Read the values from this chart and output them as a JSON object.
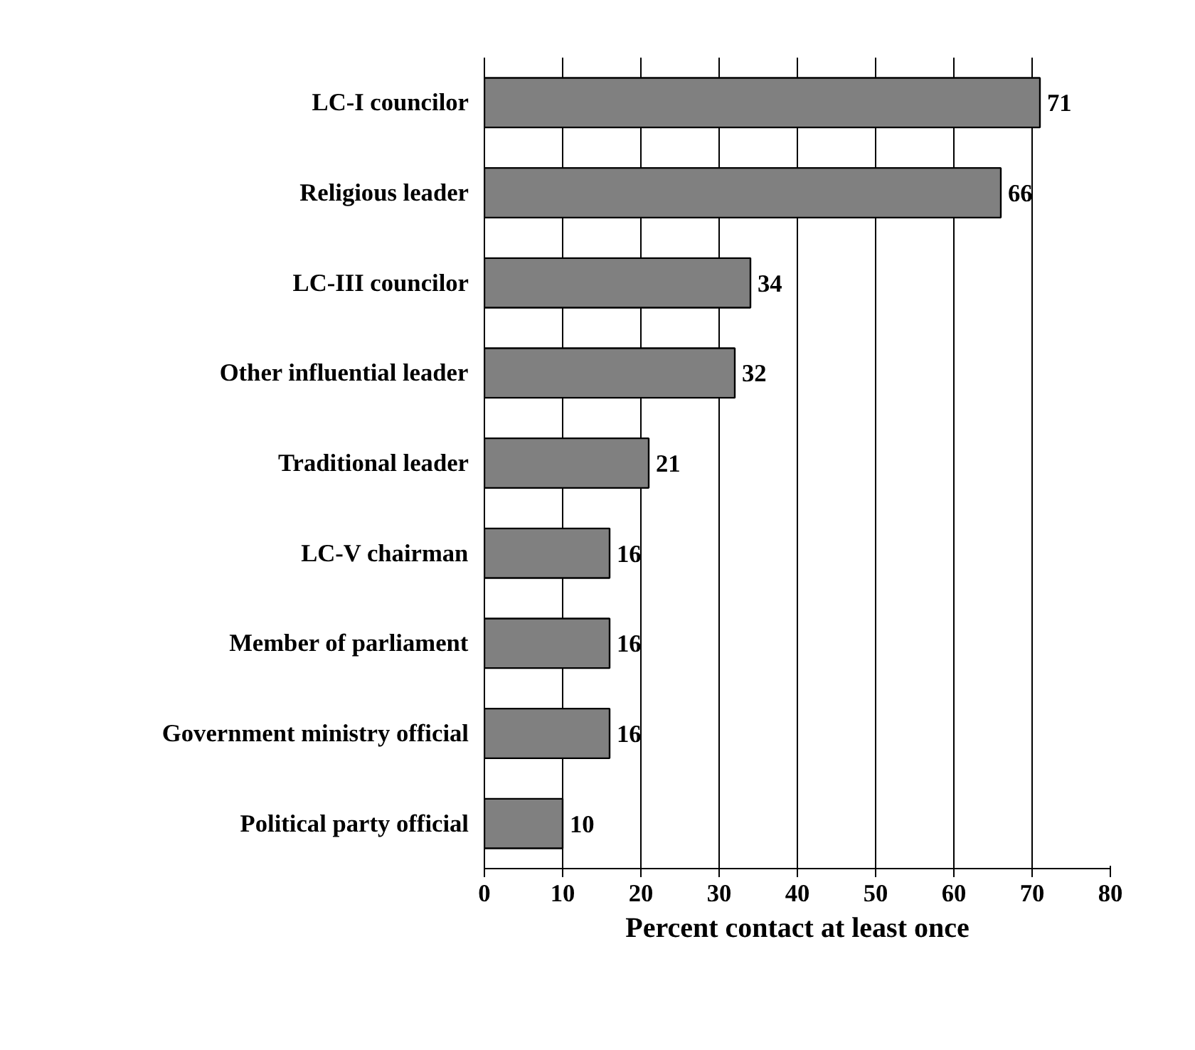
{
  "chart_data": {
    "type": "bar",
    "orientation": "horizontal",
    "xlabel": "Percent contact at least once",
    "categories": [
      "LC-I councilor",
      "Religious leader",
      "LC-III councilor",
      "Other influential leader",
      "Traditional leader",
      "LC-V chairman",
      "Member of parliament",
      "Government ministry official",
      "Political party official"
    ],
    "values": [
      71,
      66,
      34,
      32,
      21,
      16,
      16,
      16,
      10
    ],
    "color": "#808080",
    "xlim": [
      0,
      80
    ],
    "xticks": [
      0,
      10,
      20,
      30,
      40,
      50,
      60,
      70,
      80
    ],
    "grid": "x",
    "data_labels": true
  }
}
